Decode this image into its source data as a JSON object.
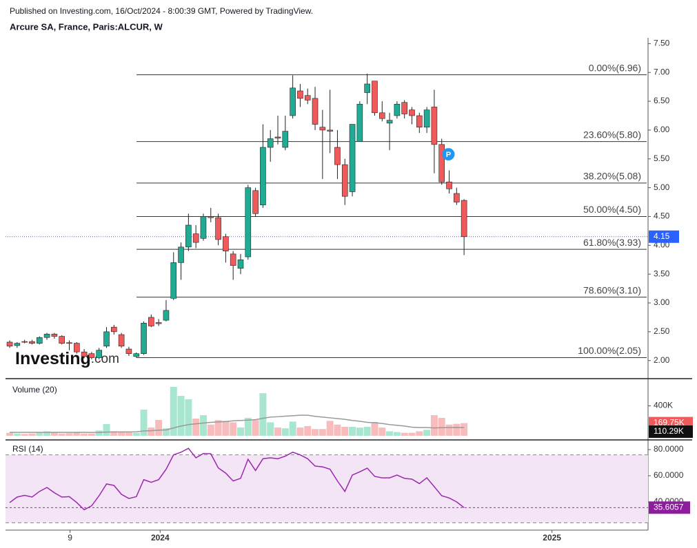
{
  "header": {
    "published": "Published on Investing.com, 16/Oct/2024 - 8:00:39 GMT, Powered by TradingView.",
    "symbol": "Arcure SA, France, Paris:ALCUR, W"
  },
  "logo": {
    "name": "Investing",
    "suffix": ".com"
  },
  "chart_data": [
    {
      "type": "candlestick",
      "open": [
        2.32,
        2.26,
        2.33,
        2.33,
        2.3,
        2.4,
        2.46,
        2.42,
        2.31,
        2.3,
        2.15,
        2.12,
        2.05,
        2.25,
        2.58,
        2.45,
        2.2,
        2.07,
        2.12,
        2.75,
        2.66,
        2.7,
        3.08,
        3.7,
        3.97,
        4.2,
        4.12,
        4.5,
        4.48,
        4.15,
        3.85,
        3.6,
        3.8,
        4.95,
        4.7,
        5.7,
        5.88,
        5.7,
        6.25,
        6.68,
        6.6,
        6.55,
        6.05,
        6.0,
        5.7,
        5.4,
        4.93,
        5.8,
        6.65,
        6.85,
        6.3,
        6.12,
        6.25,
        6.48,
        6.35,
        6.25,
        6.05,
        6.4,
        5.75,
        5.1,
        4.9,
        4.78
      ],
      "high": [
        2.35,
        2.32,
        2.36,
        2.36,
        2.42,
        2.48,
        2.48,
        2.44,
        2.35,
        2.32,
        2.2,
        2.15,
        2.22,
        2.58,
        2.62,
        2.48,
        2.24,
        2.14,
        2.68,
        2.8,
        2.72,
        3.05,
        3.88,
        4.05,
        4.55,
        4.35,
        4.55,
        4.65,
        4.55,
        4.2,
        3.9,
        3.85,
        5.05,
        5.0,
        6.1,
        6.0,
        6.25,
        6.25,
        6.95,
        6.8,
        6.72,
        6.75,
        6.35,
        6.7,
        6.0,
        5.5,
        6.1,
        6.5,
        6.98,
        6.85,
        6.5,
        6.3,
        6.5,
        6.52,
        6.4,
        6.3,
        6.4,
        6.7,
        5.85,
        5.3,
        5.0,
        4.8
      ],
      "low": [
        2.22,
        2.22,
        2.3,
        2.28,
        2.28,
        2.36,
        2.38,
        2.28,
        2.18,
        2.12,
        2.04,
        2.02,
        2.02,
        2.22,
        2.45,
        2.22,
        2.08,
        2.05,
        2.1,
        2.58,
        2.6,
        2.68,
        3.05,
        3.4,
        3.9,
        3.95,
        4.08,
        4.4,
        4.0,
        3.7,
        3.4,
        3.5,
        3.75,
        4.5,
        4.65,
        5.45,
        5.75,
        5.65,
        6.2,
        6.4,
        6.45,
        6.0,
        5.15,
        5.6,
        5.15,
        4.7,
        4.85,
        5.8,
        6.45,
        6.25,
        6.15,
        5.65,
        6.2,
        6.2,
        6.1,
        5.95,
        5.95,
        5.25,
        5.05,
        4.9,
        4.7,
        3.83
      ],
      "close": [
        2.25,
        2.3,
        2.32,
        2.3,
        2.4,
        2.46,
        2.42,
        2.3,
        2.3,
        2.15,
        2.07,
        2.05,
        2.18,
        2.5,
        2.5,
        2.25,
        2.12,
        2.12,
        2.65,
        2.6,
        2.64,
        2.87,
        3.7,
        3.97,
        4.35,
        4.05,
        4.5,
        4.48,
        4.1,
        3.9,
        3.65,
        3.75,
        5.0,
        4.55,
        5.7,
        5.85,
        5.86,
        5.98,
        6.73,
        6.55,
        6.52,
        6.1,
        6.0,
        5.98,
        5.4,
        4.85,
        6.1,
        6.45,
        6.8,
        6.3,
        6.2,
        6.17,
        6.45,
        6.28,
        6.25,
        6.05,
        6.35,
        5.75,
        5.1,
        4.98,
        4.75,
        4.15
      ],
      "up_color": "#22ab94",
      "down_color": "#f05a5a",
      "xlim": [
        -0.56,
        85.7
      ],
      "xticks": [
        {
          "value": 8.1,
          "label": "9"
        },
        {
          "value": 20.2,
          "label": "2024"
        },
        {
          "value": 72.8,
          "label": "2025"
        }
      ],
      "ylim": [
        1.71,
        7.6
      ],
      "yticks": [
        {
          "value": 2.0,
          "label": "2.00"
        },
        {
          "value": 2.5,
          "label": "2.50"
        },
        {
          "value": 3.0,
          "label": "3.00"
        },
        {
          "value": 3.5,
          "label": "3.50"
        },
        {
          "value": 4.0,
          "label": "4.00"
        },
        {
          "value": 4.5,
          "label": "4.50"
        },
        {
          "value": 5.0,
          "label": "5.00"
        },
        {
          "value": 5.5,
          "label": "5.50"
        },
        {
          "value": 6.0,
          "label": "6.00"
        },
        {
          "value": 6.5,
          "label": "6.50"
        },
        {
          "value": 7.0,
          "label": "7.00"
        },
        {
          "value": 7.5,
          "label": "7.50"
        }
      ],
      "fib_levels": [
        {
          "value": 6.96,
          "label": "0.00%(6.96)"
        },
        {
          "value": 5.8,
          "label": "23.60%(5.80)"
        },
        {
          "value": 5.08,
          "label": "38.20%(5.08)"
        },
        {
          "value": 4.5,
          "label": "50.00%(4.50)"
        },
        {
          "value": 3.93,
          "label": "61.80%(3.93)"
        },
        {
          "value": 3.1,
          "label": "78.60%(3.10)"
        },
        {
          "value": 2.05,
          "label": "100.00%(2.05)"
        }
      ],
      "last_price": {
        "value": 4.15,
        "label": "4.15",
        "color": "#2962ff"
      },
      "marker": {
        "label": "P",
        "x": 58.9,
        "y": 5.58,
        "color": "#2196f3"
      }
    },
    {
      "type": "bar",
      "title": "Volume (20)",
      "values": [
        40000,
        30000,
        25000,
        30000,
        40000,
        60000,
        40000,
        30000,
        35000,
        45000,
        30000,
        30000,
        70000,
        157000,
        60000,
        50000,
        45000,
        40000,
        350000,
        110000,
        212000,
        100000,
        654000,
        534000,
        488000,
        230000,
        276000,
        150000,
        210000,
        200000,
        180000,
        110000,
        240000,
        210000,
        570000,
        180000,
        110000,
        100000,
        190000,
        110000,
        130000,
        90000,
        90000,
        200000,
        150000,
        120000,
        120000,
        110000,
        120000,
        184000,
        110000,
        60000,
        50000,
        40000,
        40000,
        60000,
        80000,
        276000,
        240000,
        150000,
        160000,
        169750
      ],
      "last_value_label": "169.75K",
      "up_color": "#a8e6cf",
      "down_color": "#f9bcbc",
      "label_color": "#f05a5a",
      "ma": {
        "values": [
          46000,
          46000,
          46000,
          46000,
          46000,
          46000,
          46000,
          46000,
          46000,
          46000,
          46000,
          45000,
          46000,
          50000,
          52000,
          52000,
          52000,
          53000,
          65000,
          68000,
          75000,
          78000,
          105000,
          130000,
          150000,
          160000,
          170000,
          180000,
          185000,
          190000,
          200000,
          205000,
          210000,
          215000,
          235000,
          250000,
          255000,
          262000,
          268000,
          275000,
          275000,
          260000,
          250000,
          240000,
          230000,
          220000,
          205000,
          195000,
          180000,
          175000,
          165000,
          150000,
          140000,
          130000,
          115000,
          110000,
          110000,
          105000,
          108000,
          110000,
          112000,
          110290
        ],
        "last_value_label": "110.29K",
        "color": "#999999"
      },
      "ylim": [
        0,
        746000
      ],
      "yticks": [
        {
          "value": 400000,
          "label": "400K"
        }
      ]
    },
    {
      "type": "line",
      "title": "RSI (14)",
      "values": [
        39.5,
        43.7,
        45,
        43.7,
        48,
        51,
        47,
        43.7,
        44,
        39.5,
        34,
        37,
        44.7,
        53.7,
        52.6,
        45.8,
        42.6,
        44,
        57,
        55,
        57,
        65,
        76,
        78,
        81,
        73.7,
        77,
        76.8,
        66,
        62,
        56,
        58,
        72.6,
        64,
        73,
        73.7,
        73,
        75,
        78,
        76,
        73,
        67.4,
        66.8,
        65,
        56,
        48,
        60.5,
        63,
        65.8,
        59.5,
        58.4,
        58.4,
        60.5,
        58,
        57.4,
        54,
        58.4,
        51.6,
        44.7,
        43,
        40,
        35.6057
      ],
      "last_value_label": "35.6057",
      "color": "#9c27b0",
      "band_color": "#f3e5f5",
      "bands": [
        76,
        24
      ],
      "ylim": [
        21.05,
        85.3
      ],
      "yticks": [
        {
          "value": 80,
          "label": "80.0000"
        },
        {
          "value": 60,
          "label": "60.0000"
        },
        {
          "value": 40,
          "label": "40.0000"
        }
      ]
    }
  ]
}
